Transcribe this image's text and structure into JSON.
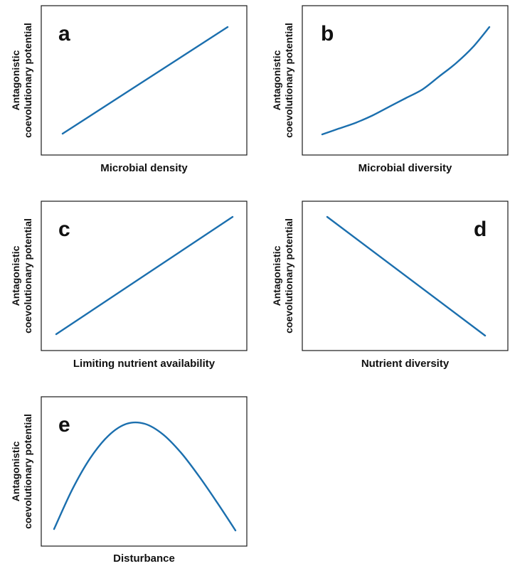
{
  "chart_data": [
    {
      "type": "line",
      "panel_label": "a",
      "xlabel": "Microbial density",
      "ylabel_lines": [
        "Antagonistic",
        "coevolutionary potential"
      ],
      "x": [
        0,
        1
      ],
      "y": [
        0.13,
        0.87
      ],
      "xlim": [
        0,
        1
      ],
      "ylim": [
        0,
        1
      ],
      "color": "#1b6fae",
      "grid": false
    },
    {
      "type": "line",
      "panel_label": "b",
      "xlabel": "Microbial diversity",
      "ylabel_lines": [
        "Antagonistic",
        "coevolutionary potential"
      ],
      "x": [
        0,
        0.1,
        0.2,
        0.3,
        0.4,
        0.5,
        0.6,
        0.7,
        0.8,
        0.9,
        1.0
      ],
      "y": [
        0.13,
        0.17,
        0.21,
        0.26,
        0.32,
        0.38,
        0.44,
        0.53,
        0.62,
        0.73,
        0.87
      ],
      "xlim": [
        0,
        1
      ],
      "ylim": [
        0,
        1
      ],
      "color": "#1b6fae",
      "grid": false
    },
    {
      "type": "line",
      "panel_label": "c",
      "xlabel": "Limiting nutrient availability",
      "ylabel_lines": [
        "Antagonistic",
        "coevolutionary potential"
      ],
      "x": [
        0,
        1
      ],
      "y": [
        0.13,
        0.93
      ],
      "xlim": [
        0,
        1
      ],
      "ylim": [
        0,
        1
      ],
      "color": "#1b6fae",
      "grid": false
    },
    {
      "type": "line",
      "panel_label": "d",
      "xlabel": "Nutrient diversity",
      "ylabel_lines": [
        "Antagonistic",
        "coevolutionary potential"
      ],
      "x": [
        0,
        1
      ],
      "y": [
        0.93,
        0.13
      ],
      "xlim": [
        0,
        1
      ],
      "ylim": [
        0,
        1
      ],
      "color": "#1b6fae",
      "grid": false
    },
    {
      "type": "line",
      "panel_label": "e",
      "xlabel": "Disturbance",
      "ylabel_lines": [
        "Antagonistic",
        "coevolutionary potential"
      ],
      "x": [
        0,
        0.1,
        0.2,
        0.3,
        0.4,
        0.5,
        0.6,
        0.7,
        0.8,
        0.9,
        1.0
      ],
      "y": [
        0.12,
        0.42,
        0.66,
        0.83,
        0.92,
        0.92,
        0.84,
        0.7,
        0.52,
        0.32,
        0.11
      ],
      "xlim": [
        0,
        1
      ],
      "ylim": [
        0,
        1
      ],
      "color": "#1b6fae",
      "grid": false
    }
  ]
}
